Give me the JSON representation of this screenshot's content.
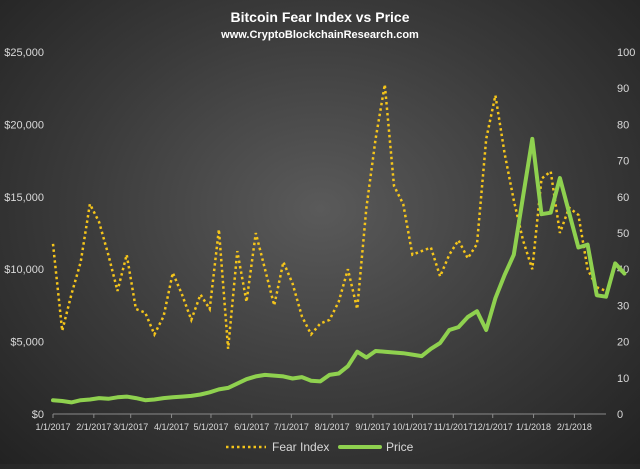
{
  "chart_data": {
    "type": "line",
    "title": "Bitcoin  Fear Index vs Price",
    "subtitle": "www.CryptoBlockchainResearch.com",
    "x_tick_labels": [
      "1/1/2017",
      "2/1/2017",
      "3/1/2017",
      "4/1/2017",
      "5/1/2017",
      "6/1/2017",
      "7/1/2017",
      "8/1/2017",
      "9/1/2017",
      "10/1/2017",
      "11/1/2017",
      "12/1/2017",
      "1/1/2018",
      "2/1/2018"
    ],
    "y_left": {
      "range": [
        0,
        25000
      ],
      "tick_labels": [
        "$0",
        "$5,000",
        "$10,000",
        "$15,000",
        "$20,000",
        "$25,000"
      ]
    },
    "y_right": {
      "range": [
        0,
        100
      ],
      "tick_labels": [
        "0",
        "10",
        "20",
        "30",
        "40",
        "50",
        "60",
        "70",
        "80",
        "90",
        "100"
      ]
    },
    "x_range": [
      0,
      60
    ],
    "x_month_positions": [
      0,
      4.43,
      8.43,
      12.86,
      17.14,
      21.57,
      25.86,
      30.29,
      34.71,
      39,
      43.43,
      47.71,
      52.14,
      56.57
    ],
    "legend": {
      "position": "bottom",
      "entries": [
        "Fear Index",
        "Price"
      ]
    },
    "colors": {
      "fear": "#f5c51a",
      "price": "#8fd14f",
      "text": "#ffffff",
      "axis_text": "#d9d9d9"
    },
    "series": [
      {
        "name": "Fear Index",
        "axis": "right",
        "style": "dotted",
        "values": [
          [
            0,
            47
          ],
          [
            1,
            23
          ],
          [
            2,
            33
          ],
          [
            3,
            42
          ],
          [
            4,
            58
          ],
          [
            5,
            53
          ],
          [
            6,
            44
          ],
          [
            7,
            34
          ],
          [
            8,
            44
          ],
          [
            9,
            29
          ],
          [
            10,
            28
          ],
          [
            11,
            22
          ],
          [
            12,
            27
          ],
          [
            13,
            39
          ],
          [
            14,
            33
          ],
          [
            15,
            26
          ],
          [
            16,
            33
          ],
          [
            17,
            29
          ],
          [
            18,
            51
          ],
          [
            19,
            18
          ],
          [
            20,
            45
          ],
          [
            21,
            31
          ],
          [
            22,
            50
          ],
          [
            23,
            40
          ],
          [
            24,
            30
          ],
          [
            25,
            42
          ],
          [
            26,
            36
          ],
          [
            27,
            27
          ],
          [
            28,
            22
          ],
          [
            29,
            25
          ],
          [
            30,
            26
          ],
          [
            31,
            31
          ],
          [
            32,
            40
          ],
          [
            33,
            29
          ],
          [
            34,
            57
          ],
          [
            35,
            76
          ],
          [
            36,
            91
          ],
          [
            37,
            63
          ],
          [
            38,
            58
          ],
          [
            39,
            44
          ],
          [
            40,
            45
          ],
          [
            41,
            46
          ],
          [
            42,
            38
          ],
          [
            43,
            44
          ],
          [
            44,
            48
          ],
          [
            45,
            43
          ],
          [
            46,
            47
          ],
          [
            47,
            76
          ],
          [
            48,
            88
          ],
          [
            49,
            72
          ],
          [
            50,
            59
          ],
          [
            51,
            48
          ],
          [
            52,
            40
          ],
          [
            53,
            65
          ],
          [
            54,
            67
          ],
          [
            55,
            50
          ],
          [
            56,
            57
          ],
          [
            57,
            55
          ],
          [
            58,
            40
          ],
          [
            59,
            35
          ],
          [
            60,
            34
          ]
        ]
      },
      {
        "name": "Price",
        "axis": "left",
        "style": "solid",
        "values": [
          [
            0,
            950
          ],
          [
            1,
            900
          ],
          [
            2,
            800
          ],
          [
            3,
            950
          ],
          [
            4,
            1000
          ],
          [
            5,
            1100
          ],
          [
            6,
            1050
          ],
          [
            7,
            1150
          ],
          [
            8,
            1200
          ],
          [
            9,
            1100
          ],
          [
            10,
            950
          ],
          [
            11,
            1000
          ],
          [
            12,
            1100
          ],
          [
            13,
            1150
          ],
          [
            14,
            1200
          ],
          [
            15,
            1250
          ],
          [
            16,
            1350
          ],
          [
            17,
            1500
          ],
          [
            18,
            1700
          ],
          [
            19,
            1800
          ],
          [
            20,
            2100
          ],
          [
            21,
            2400
          ],
          [
            22,
            2600
          ],
          [
            23,
            2700
          ],
          [
            24,
            2650
          ],
          [
            25,
            2600
          ],
          [
            26,
            2450
          ],
          [
            27,
            2550
          ],
          [
            28,
            2300
          ],
          [
            29,
            2250
          ],
          [
            30,
            2700
          ],
          [
            31,
            2800
          ],
          [
            32,
            3300
          ],
          [
            33,
            4300
          ],
          [
            34,
            3900
          ],
          [
            35,
            4350
          ],
          [
            36,
            4300
          ],
          [
            37,
            4250
          ],
          [
            38,
            4200
          ],
          [
            39,
            4100
          ],
          [
            40,
            4000
          ],
          [
            41,
            4500
          ],
          [
            42,
            4900
          ],
          [
            43,
            5800
          ],
          [
            44,
            6000
          ],
          [
            45,
            6700
          ],
          [
            46,
            7100
          ],
          [
            47,
            5800
          ],
          [
            48,
            8000
          ],
          [
            49,
            9600
          ],
          [
            50,
            11000
          ],
          [
            51,
            15000
          ],
          [
            52,
            19000
          ],
          [
            53,
            13800
          ],
          [
            54,
            13900
          ],
          [
            55,
            16300
          ],
          [
            56,
            13900
          ],
          [
            57,
            11500
          ],
          [
            58,
            11700
          ],
          [
            59,
            8200
          ],
          [
            60,
            8100
          ],
          [
            61,
            10400
          ],
          [
            62,
            9700
          ]
        ]
      }
    ]
  }
}
